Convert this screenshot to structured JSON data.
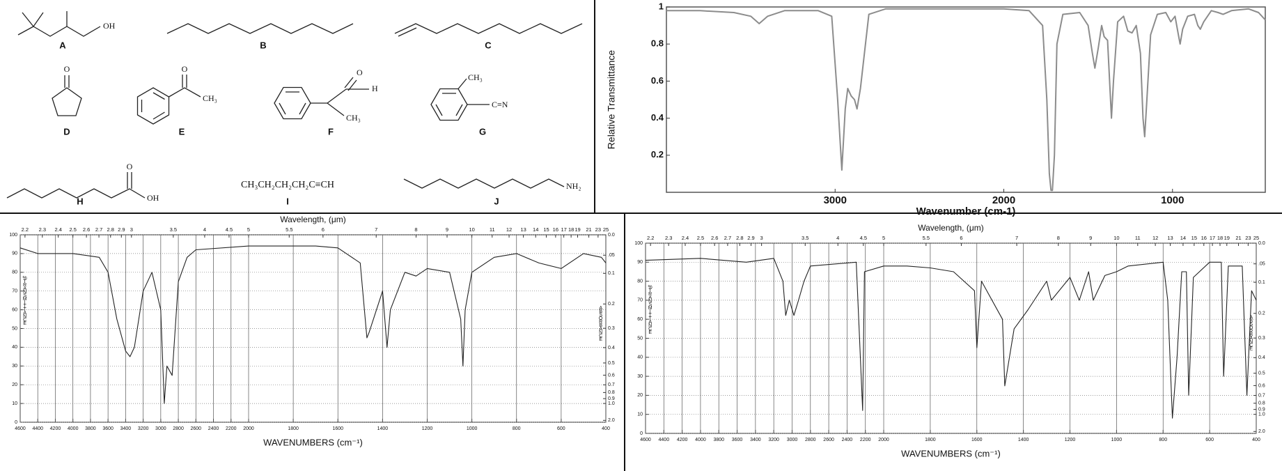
{
  "structures": [
    {
      "label": "A",
      "groups": [
        "OH"
      ]
    },
    {
      "label": "B"
    },
    {
      "label": "C"
    },
    {
      "label": "D",
      "groups": [
        "O"
      ]
    },
    {
      "label": "E",
      "groups": [
        "O",
        "CH₃"
      ]
    },
    {
      "label": "F",
      "groups": [
        "O",
        "H",
        "CH₃"
      ]
    },
    {
      "label": "G",
      "groups": [
        "CH₃",
        "C≡N"
      ]
    },
    {
      "label": "H",
      "groups": [
        "O",
        "OH"
      ]
    },
    {
      "label": "I",
      "formula": "CH₃CH₂CH₂CH₂C≡CH"
    },
    {
      "label": "J",
      "groups": [
        "NH₂"
      ]
    }
  ],
  "chart_data": [
    {
      "type": "line",
      "xlabel": "Wavenumber (cm-1)",
      "ylabel": "Relative Transmittance",
      "color": "#8c8c8c",
      "xlim": [
        4000,
        450
      ],
      "ylim": [
        0,
        1
      ],
      "xticks": [
        3000,
        2000,
        1000
      ],
      "yticks": [
        0.2,
        0.4,
        0.6,
        0.8,
        1
      ],
      "grid": false,
      "x": [
        4000,
        3800,
        3600,
        3500,
        3450,
        3400,
        3300,
        3100,
        3020,
        2985,
        2960,
        2940,
        2925,
        2905,
        2885,
        2870,
        2850,
        2800,
        2700,
        2400,
        2000,
        1850,
        1770,
        1745,
        1730,
        1720,
        1712,
        1700,
        1685,
        1650,
        1550,
        1500,
        1475,
        1460,
        1440,
        1420,
        1405,
        1385,
        1370,
        1362,
        1350,
        1325,
        1290,
        1265,
        1240,
        1215,
        1190,
        1175,
        1165,
        1155,
        1130,
        1090,
        1040,
        1010,
        985,
        965,
        955,
        940,
        910,
        870,
        850,
        835,
        815,
        770,
        730,
        700,
        650,
        550,
        490,
        450
      ],
      "values": [
        0.98,
        0.98,
        0.97,
        0.95,
        0.91,
        0.95,
        0.98,
        0.98,
        0.95,
        0.5,
        0.12,
        0.45,
        0.56,
        0.52,
        0.5,
        0.45,
        0.56,
        0.96,
        0.99,
        0.99,
        0.99,
        0.98,
        0.9,
        0.5,
        0.1,
        0.01,
        0.01,
        0.2,
        0.8,
        0.96,
        0.97,
        0.9,
        0.75,
        0.67,
        0.78,
        0.9,
        0.84,
        0.82,
        0.55,
        0.4,
        0.6,
        0.92,
        0.95,
        0.87,
        0.86,
        0.9,
        0.75,
        0.4,
        0.3,
        0.45,
        0.85,
        0.96,
        0.97,
        0.92,
        0.95,
        0.85,
        0.8,
        0.88,
        0.95,
        0.96,
        0.9,
        0.88,
        0.92,
        0.98,
        0.97,
        0.96,
        0.98,
        0.99,
        0.97,
        0.93
      ]
    },
    {
      "type": "line",
      "xlabel": "WAVENUMBERS (cm⁻¹)",
      "x2label": "Wavelength, (μm)",
      "ylabel": "%TRANSMITTANCE",
      "y2label": "ABSORBANCE",
      "color": "#222222",
      "xlim": [
        4600,
        400
      ],
      "xbreak": 2000,
      "ylim": [
        0,
        100
      ],
      "grid": true,
      "y2scale": "absorbance",
      "xticks": [
        4600,
        4400,
        4200,
        4000,
        3800,
        3600,
        3400,
        3200,
        3000,
        2800,
        2600,
        2400,
        2200,
        2000,
        1800,
        1600,
        1400,
        1200,
        1000,
        800,
        600,
        400
      ],
      "x2ticks": [
        2.2,
        2.3,
        2.4,
        2.5,
        2.6,
        2.7,
        2.8,
        2.9,
        3,
        3.5,
        4,
        4.5,
        5,
        5.5,
        6,
        7,
        8,
        9,
        10,
        11,
        12,
        13,
        14,
        15,
        16,
        17,
        18,
        19,
        21,
        23,
        25
      ],
      "yticks": [
        0,
        10,
        20,
        30,
        40,
        50,
        60,
        70,
        80,
        90,
        100
      ],
      "y2ticks": [
        {
          "value": 0,
          "label": "0.0"
        },
        {
          "value": 0.05,
          "label": ".05"
        },
        0.1,
        0.2,
        0.3,
        0.4,
        0.5,
        0.6,
        0.7,
        0.8,
        0.9,
        {
          "value": 1,
          "label": "1.0"
        },
        {
          "value": 2,
          "label": "2.0"
        }
      ],
      "x": [
        4600,
        4400,
        4000,
        3700,
        3600,
        3500,
        3400,
        3350,
        3300,
        3200,
        3100,
        3000,
        2960,
        2930,
        2870,
        2800,
        2700,
        2600,
        2000,
        1700,
        1600,
        1500,
        1470,
        1460,
        1400,
        1380,
        1365,
        1300,
        1250,
        1200,
        1100,
        1050,
        1040,
        1030,
        1000,
        900,
        800,
        700,
        600,
        500,
        420,
        400
      ],
      "values": [
        93,
        90,
        90,
        88,
        80,
        55,
        38,
        35,
        40,
        70,
        80,
        60,
        10,
        30,
        25,
        75,
        88,
        92,
        94,
        94,
        93,
        85,
        45,
        48,
        70,
        40,
        60,
        80,
        78,
        82,
        80,
        55,
        30,
        60,
        80,
        88,
        90,
        85,
        82,
        90,
        88,
        85
      ]
    },
    {
      "type": "line",
      "xlabel": "WAVENUMBERS (cm⁻¹)",
      "x2label": "Wavelength, (μm)",
      "ylabel": "%TRANSMITTANCE",
      "y2label": "ABSORBANCE",
      "color": "#222222",
      "xlim": [
        4600,
        400
      ],
      "xbreak": 2000,
      "ylim": [
        0,
        100
      ],
      "grid": true,
      "y2scale": "absorbance",
      "xticks": [
        4600,
        4400,
        4200,
        4000,
        3800,
        3600,
        3400,
        3200,
        3000,
        2800,
        2600,
        2400,
        2200,
        2000,
        1800,
        1600,
        1400,
        1200,
        1000,
        800,
        600,
        400
      ],
      "x2ticks": [
        2.2,
        2.3,
        2.4,
        2.5,
        2.6,
        2.7,
        2.8,
        2.9,
        3,
        3.5,
        4,
        4.5,
        5,
        5.5,
        6,
        7,
        8,
        9,
        10,
        11,
        12,
        13,
        14,
        15,
        16,
        17,
        18,
        19,
        21,
        23,
        25
      ],
      "yticks": [
        0,
        10,
        20,
        30,
        40,
        50,
        60,
        70,
        80,
        90,
        100
      ],
      "y2ticks": [
        {
          "value": 0,
          "label": "0.0"
        },
        {
          "value": 0.05,
          "label": ".05"
        },
        0.1,
        0.2,
        0.3,
        0.4,
        0.5,
        0.6,
        0.7,
        0.8,
        0.9,
        {
          "value": 1,
          "label": "1.0"
        },
        {
          "value": 2,
          "label": "2.0"
        }
      ],
      "x": [
        4600,
        4000,
        3500,
        3200,
        3100,
        3070,
        3030,
        2980,
        2930,
        2870,
        2800,
        2300,
        2230,
        2210,
        2000,
        1900,
        1800,
        1700,
        1610,
        1600,
        1580,
        1490,
        1480,
        1460,
        1440,
        1380,
        1300,
        1280,
        1200,
        1160,
        1120,
        1100,
        1050,
        1000,
        950,
        800,
        780,
        760,
        740,
        720,
        700,
        690,
        670,
        600,
        550,
        540,
        520,
        460,
        440,
        420,
        400
      ],
      "values": [
        91,
        92,
        90,
        92,
        80,
        62,
        70,
        62,
        70,
        80,
        88,
        90,
        12,
        85,
        88,
        88,
        87,
        85,
        75,
        45,
        80,
        60,
        25,
        40,
        55,
        65,
        80,
        70,
        82,
        70,
        85,
        70,
        83,
        85,
        88,
        90,
        70,
        8,
        40,
        85,
        85,
        20,
        82,
        90,
        90,
        30,
        88,
        88,
        20,
        75,
        70
      ]
    }
  ]
}
